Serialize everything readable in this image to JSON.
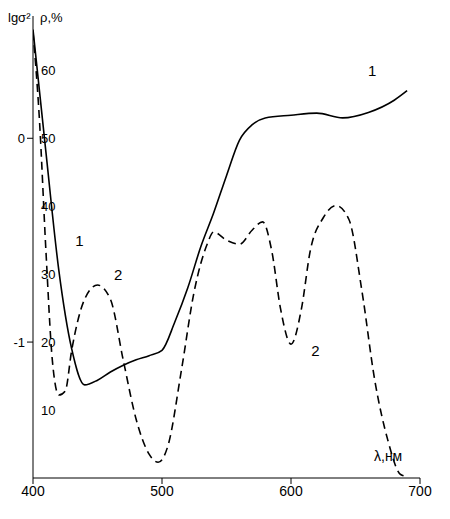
{
  "chart_data": {
    "type": "line",
    "x_label": "λ,нм",
    "y_label": "ρ,%",
    "y2_label": "lgσ²",
    "xlim": [
      400,
      700
    ],
    "xticks": [
      400,
      500,
      600,
      700
    ],
    "ylim": [
      0,
      68
    ],
    "yticks": [
      10,
      20,
      30,
      40,
      50,
      60
    ],
    "y2lim": [
      -1.667,
      0.6
    ],
    "y2ticks": [
      -1,
      0
    ],
    "grid": false,
    "series": [
      {
        "color": "#000000",
        "line_style": "solid",
        "axis": "y",
        "x": [
          400,
          410,
          420,
          430,
          440,
          450,
          460,
          470,
          480,
          490,
          500,
          510,
          520,
          530,
          540,
          550,
          560,
          570,
          580,
          600,
          620,
          640,
          660,
          680,
          690
        ],
        "values": [
          66,
          48,
          30.6,
          19,
          13.7,
          14.4,
          15.6,
          16.6,
          17.4,
          18,
          18.8,
          23,
          28,
          34,
          39,
          44.5,
          49.7,
          52,
          53,
          53.4,
          53.7,
          53,
          53.8,
          55.6,
          57
        ]
      },
      {
        "color": "#000000",
        "line_style": "dashed",
        "axis": "y2",
        "x": [
          400,
          405,
          410,
          415,
          420,
          425,
          430,
          440,
          450,
          460,
          470,
          480,
          490,
          497,
          505,
          515,
          525,
          535,
          540,
          550,
          560,
          570,
          578,
          585,
          592,
          600,
          608,
          615,
          625,
          635,
          645,
          655,
          665,
          675,
          685,
          690
        ],
        "values": [
          0.52,
          0.09,
          -0.55,
          -1.09,
          -1.26,
          -1.24,
          -1.04,
          -0.79,
          -0.72,
          -0.79,
          -1.09,
          -1.38,
          -1.55,
          -1.59,
          -1.5,
          -1.14,
          -0.75,
          -0.52,
          -0.46,
          -0.5,
          -0.52,
          -0.45,
          -0.41,
          -0.55,
          -0.84,
          -1.01,
          -0.84,
          -0.55,
          -0.39,
          -0.33,
          -0.4,
          -0.75,
          -1.19,
          -1.48,
          -1.65,
          -1.66
        ]
      }
    ],
    "annotations": [
      {
        "text": "1",
        "x": 663,
        "y": 60,
        "axis": "y"
      },
      {
        "text": "1",
        "x": 436,
        "y": 35,
        "axis": "y"
      },
      {
        "text": "2",
        "x": 466,
        "y": -0.67,
        "axis": "y2"
      },
      {
        "text": "2",
        "x": 619,
        "y": -1.04,
        "axis": "y2"
      }
    ]
  }
}
